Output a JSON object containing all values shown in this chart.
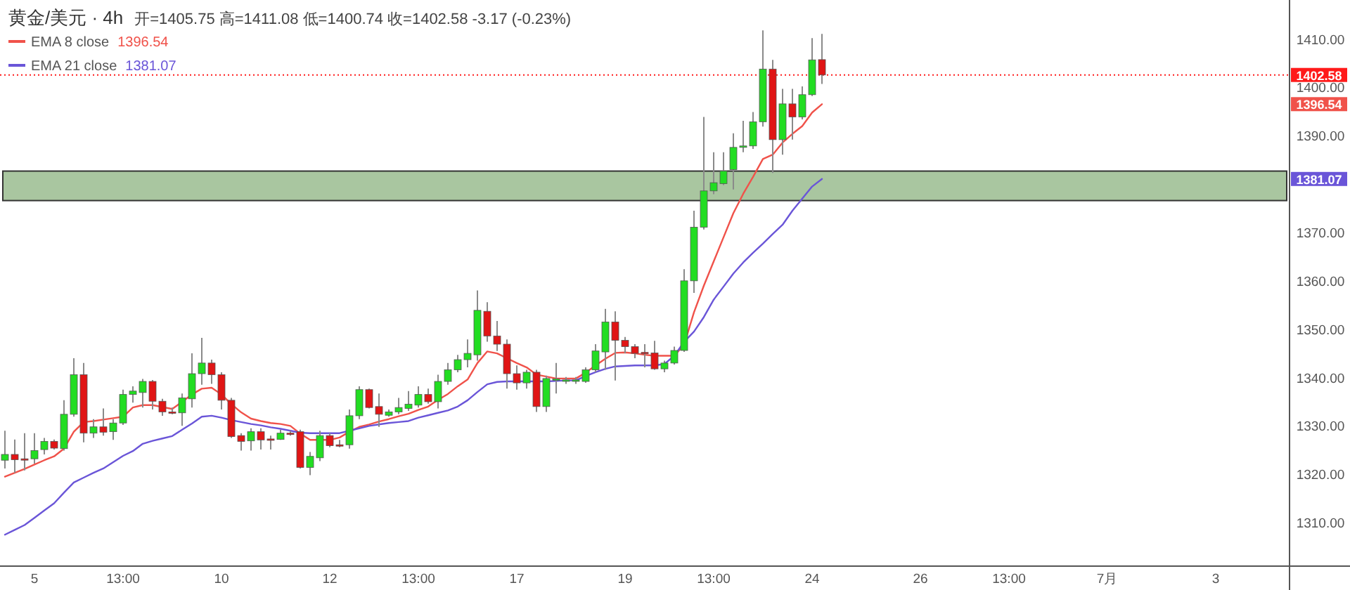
{
  "chart_data": {
    "type": "candlestick",
    "title": "黄金/美元 · 4h",
    "subtitle": "开=1405.75 高=1411.08 低=1400.74 收=1402.58 -3.17 (-0.23%)",
    "categories": [
      null,
      null,
      null,
      "5",
      null,
      null,
      null,
      null,
      null,
      null,
      null,
      null,
      "13:00",
      null,
      null,
      null,
      null,
      null,
      null,
      null,
      null,
      null,
      "10",
      null,
      null,
      null,
      null,
      null,
      null,
      null,
      null,
      null,
      null,
      "12",
      null,
      null,
      null,
      null,
      null,
      null,
      null,
      null,
      "13:00",
      null,
      null,
      null,
      null,
      null,
      null,
      null,
      null,
      null,
      "17",
      null,
      null,
      null,
      null,
      null,
      null,
      null,
      null,
      null,
      null,
      "19",
      null,
      null,
      null,
      null,
      null,
      null,
      null,
      null,
      "13:00",
      null,
      null,
      null,
      null,
      null,
      null,
      null,
      null,
      null,
      "24",
      null,
      null,
      null,
      null,
      null,
      null,
      null,
      null,
      null,
      null,
      "26",
      null,
      null,
      null,
      null,
      null,
      null,
      null,
      null,
      "13:00",
      null,
      null,
      null,
      null,
      null,
      null,
      null,
      null,
      null,
      "7月",
      null,
      null,
      null,
      null,
      null,
      null,
      null,
      null,
      null,
      null,
      "3",
      null,
      null,
      null,
      null,
      null,
      null,
      null
    ],
    "ohlc": [
      [
        1322.9,
        1329.0,
        1321.2,
        1324.1
      ],
      [
        1324.1,
        1327.2,
        1320.3,
        1323.0
      ],
      [
        1323.2,
        1328.5,
        1320.8,
        1323.1
      ],
      [
        1323.2,
        1328.5,
        1322.2,
        1324.9
      ],
      [
        1325.1,
        1327.5,
        1324.1,
        1326.8
      ],
      [
        1326.8,
        1327.2,
        1325.1,
        1325.4
      ],
      [
        1325.3,
        1335.3,
        1324.9,
        1332.4
      ],
      [
        1332.4,
        1344.0,
        1331.9,
        1340.6
      ],
      [
        1340.6,
        1343.0,
        1326.6,
        1328.5
      ],
      [
        1328.5,
        1331.4,
        1327.5,
        1329.8
      ],
      [
        1329.8,
        1333.6,
        1328.0,
        1328.7
      ],
      [
        1328.8,
        1331.4,
        1327.1,
        1330.6
      ],
      [
        1330.6,
        1337.5,
        1330.2,
        1336.5
      ],
      [
        1336.5,
        1338.2,
        1334.8,
        1337.2
      ],
      [
        1336.9,
        1339.7,
        1333.8,
        1339.2
      ],
      [
        1339.2,
        1339.5,
        1333.4,
        1335.1
      ],
      [
        1335.1,
        1335.6,
        1332.1,
        1332.9
      ],
      [
        1332.9,
        1333.8,
        1332.4,
        1332.8
      ],
      [
        1332.7,
        1336.7,
        1330.0,
        1335.8
      ],
      [
        1335.6,
        1345.0,
        1333.8,
        1340.8
      ],
      [
        1340.8,
        1348.2,
        1338.5,
        1343.0
      ],
      [
        1343.0,
        1343.7,
        1338.7,
        1340.6
      ],
      [
        1340.6,
        1341.1,
        1333.4,
        1335.3
      ],
      [
        1335.3,
        1335.8,
        1327.5,
        1327.8
      ],
      [
        1328.0,
        1328.5,
        1324.9,
        1326.8
      ],
      [
        1326.9,
        1329.5,
        1324.9,
        1328.8
      ],
      [
        1328.8,
        1329.5,
        1325.1,
        1327.1
      ],
      [
        1327.3,
        1328.0,
        1325.1,
        1327.2
      ],
      [
        1327.2,
        1329.2,
        1327.1,
        1328.5
      ],
      [
        1328.5,
        1329.0,
        1328.0,
        1328.4
      ],
      [
        1328.8,
        1329.2,
        1321.2,
        1321.4
      ],
      [
        1321.4,
        1324.6,
        1319.8,
        1323.7
      ],
      [
        1323.4,
        1329.0,
        1322.7,
        1328.0
      ],
      [
        1328.0,
        1328.5,
        1325.6,
        1325.9
      ],
      [
        1326.1,
        1327.1,
        1325.6,
        1326.0
      ],
      [
        1326.1,
        1333.4,
        1325.3,
        1332.1
      ],
      [
        1332.1,
        1338.2,
        1331.4,
        1337.5
      ],
      [
        1337.5,
        1337.7,
        1333.6,
        1333.8
      ],
      [
        1334.0,
        1336.7,
        1329.8,
        1332.4
      ],
      [
        1332.2,
        1333.4,
        1331.9,
        1332.9
      ],
      [
        1332.9,
        1335.8,
        1332.4,
        1333.8
      ],
      [
        1333.6,
        1337.2,
        1333.1,
        1334.5
      ],
      [
        1334.3,
        1338.2,
        1333.8,
        1336.5
      ],
      [
        1336.5,
        1337.7,
        1334.6,
        1335.0
      ],
      [
        1335.0,
        1340.6,
        1333.6,
        1339.2
      ],
      [
        1339.2,
        1343.0,
        1338.5,
        1341.6
      ],
      [
        1341.6,
        1344.7,
        1341.1,
        1343.7
      ],
      [
        1343.7,
        1347.9,
        1342.1,
        1345.0
      ],
      [
        1344.7,
        1358.0,
        1343.5,
        1353.9
      ],
      [
        1353.7,
        1355.6,
        1347.4,
        1348.6
      ],
      [
        1348.6,
        1351.7,
        1345.5,
        1346.9
      ],
      [
        1346.9,
        1347.9,
        1337.7,
        1340.8
      ],
      [
        1340.8,
        1342.5,
        1337.5,
        1338.9
      ],
      [
        1338.9,
        1341.6,
        1337.7,
        1341.1
      ],
      [
        1341.1,
        1341.6,
        1332.9,
        1334.0
      ],
      [
        1334.0,
        1340.4,
        1332.9,
        1339.8
      ],
      [
        1339.6,
        1343.0,
        1336.7,
        1339.7
      ],
      [
        1339.4,
        1340.1,
        1338.7,
        1339.5
      ],
      [
        1339.4,
        1340.1,
        1338.7,
        1339.5
      ],
      [
        1339.2,
        1342.1,
        1338.9,
        1341.6
      ],
      [
        1341.6,
        1346.9,
        1341.1,
        1345.5
      ],
      [
        1345.3,
        1354.2,
        1341.6,
        1351.5
      ],
      [
        1351.5,
        1353.7,
        1339.4,
        1347.7
      ],
      [
        1347.7,
        1348.4,
        1345.0,
        1346.4
      ],
      [
        1346.4,
        1346.9,
        1344.0,
        1345.0
      ],
      [
        1345.2,
        1346.9,
        1342.1,
        1345.1
      ],
      [
        1345.1,
        1347.6,
        1341.6,
        1341.8
      ],
      [
        1341.8,
        1343.5,
        1341.1,
        1343.0
      ],
      [
        1343.0,
        1346.4,
        1342.7,
        1345.6
      ],
      [
        1345.6,
        1362.4,
        1345.3,
        1360.0
      ],
      [
        1360.0,
        1374.5,
        1357.5,
        1371.1
      ],
      [
        1371.1,
        1393.9,
        1370.6,
        1378.6
      ],
      [
        1378.6,
        1386.6,
        1377.9,
        1380.3
      ],
      [
        1380.1,
        1386.6,
        1379.8,
        1382.7
      ],
      [
        1383.0,
        1390.5,
        1378.9,
        1387.6
      ],
      [
        1387.6,
        1393.1,
        1386.6,
        1387.9
      ],
      [
        1387.9,
        1394.9,
        1387.3,
        1392.9
      ],
      [
        1392.9,
        1411.8,
        1391.9,
        1403.8
      ],
      [
        1403.8,
        1405.7,
        1382.3,
        1389.2
      ],
      [
        1389.2,
        1399.7,
        1386.1,
        1396.6
      ],
      [
        1396.6,
        1399.7,
        1389.2,
        1393.9
      ],
      [
        1393.9,
        1400.2,
        1393.4,
        1398.5
      ],
      [
        1398.5,
        1410.2,
        1398.2,
        1405.7
      ],
      [
        1405.75,
        1411.08,
        1400.74,
        1402.58
      ],
      null,
      null,
      null,
      null,
      null,
      null,
      null,
      null,
      null,
      null,
      null,
      null,
      null,
      null,
      null,
      null,
      null,
      null,
      null,
      null,
      null,
      null,
      null,
      null,
      null,
      null,
      null,
      null,
      null,
      null,
      null,
      null,
      null,
      null,
      null,
      null,
      null,
      null,
      null,
      null,
      null,
      null,
      null,
      null,
      null,
      null,
      null
    ],
    "colors": [
      "#22dd22",
      "#e01515",
      "#e01515",
      "#22dd22",
      "#22dd22",
      "#e01515",
      "#22dd22",
      "#22dd22",
      "#e01515",
      "#22dd22",
      "#e01515",
      "#22dd22",
      "#22dd22",
      "#22dd22",
      "#22dd22",
      "#e01515",
      "#e01515",
      "#e01515",
      "#22dd22",
      "#22dd22",
      "#22dd22",
      "#e01515",
      "#e01515",
      "#e01515",
      "#e01515",
      "#22dd22",
      "#e01515",
      "#e01515",
      "#22dd22",
      "#e01515",
      "#e01515",
      "#22dd22",
      "#22dd22",
      "#e01515",
      "#e01515",
      "#22dd22",
      "#22dd22",
      "#e01515",
      "#e01515",
      "#22dd22",
      "#22dd22",
      "#22dd22",
      "#22dd22",
      "#e01515",
      "#22dd22",
      "#22dd22",
      "#22dd22",
      "#22dd22",
      "#22dd22",
      "#e01515",
      "#e01515",
      "#e01515",
      "#e01515",
      "#22dd22",
      "#e01515",
      "#22dd22",
      "#22dd22",
      "#22dd22",
      "#22dd22",
      "#22dd22",
      "#22dd22",
      "#22dd22",
      "#e01515",
      "#e01515",
      "#e01515",
      "#e01515",
      "#e01515",
      "#22dd22",
      "#22dd22",
      "#22dd22",
      "#22dd22",
      "#22dd22",
      "#22dd22",
      "#22dd22",
      "#22dd22",
      "#22dd22",
      "#22dd22",
      "#22dd22",
      "#e01515",
      "#22dd22",
      "#e01515",
      "#22dd22",
      "#22dd22",
      "#e01515",
      null,
      null,
      null,
      null,
      null,
      null,
      null,
      null,
      null,
      null,
      null,
      null,
      null,
      null,
      null,
      null,
      null,
      null,
      null,
      null,
      null,
      null,
      null,
      null,
      null,
      null,
      null,
      null,
      null,
      null,
      null,
      null,
      null,
      null,
      null,
      null,
      null,
      null,
      null,
      null,
      null,
      null,
      null,
      null,
      null,
      null,
      null
    ],
    "series": [
      {
        "name": "EMA 8 close",
        "type": "line",
        "color": "#f0524a",
        "values": [
          1319.5,
          1320.3,
          1321.1,
          1322.0,
          1322.9,
          1323.7,
          1325.3,
          1328.8,
          1330.8,
          1331.0,
          1331.3,
          1331.6,
          1331.9,
          1333.8,
          1334.3,
          1334.3,
          1333.9,
          1333.5,
          1335.0,
          1336.5,
          1337.7,
          1337.9,
          1336.5,
          1334.5,
          1332.8,
          1331.5,
          1331.0,
          1330.6,
          1330.4,
          1330.0,
          1328.4,
          1327.1,
          1327.1,
          1327.1,
          1327.6,
          1328.8,
          1329.8,
          1330.3,
          1330.9,
          1331.4,
          1332.0,
          1332.5,
          1333.3,
          1334.0,
          1335.4,
          1336.6,
          1338.2,
          1339.6,
          1343.0,
          1345.4,
          1345.0,
          1344.0,
          1343.0,
          1342.1,
          1340.6,
          1340.2,
          1339.8,
          1339.8,
          1339.8,
          1341.0,
          1342.5,
          1343.9,
          1345.1,
          1345.2,
          1345.0,
          1344.7,
          1344.5,
          1344.5,
          1344.5,
          1346.8,
          1353.5,
          1359.0,
          1364.0,
          1369.0,
          1374.0,
          1378.0,
          1381.5,
          1385.2,
          1386.1,
          1388.6,
          1390.4,
          1392.0,
          1394.8,
          1396.54,
          null,
          null,
          null,
          null,
          null,
          null,
          null,
          null,
          null,
          null,
          null,
          null,
          null,
          null,
          null,
          null,
          null,
          null,
          null,
          null,
          null,
          null,
          null,
          null,
          null,
          null,
          null,
          null,
          null,
          null,
          null,
          null,
          null,
          null,
          null,
          null,
          null,
          null,
          null,
          null,
          null,
          null,
          null,
          null,
          null,
          null,
          null
        ]
      },
      {
        "name": "EMA 21 close",
        "type": "line",
        "color": "#6a55d8",
        "values": [
          1307.5,
          1308.5,
          1309.5,
          1311.0,
          1312.5,
          1314.0,
          1316.2,
          1318.3,
          1319.3,
          1320.3,
          1321.2,
          1322.5,
          1323.8,
          1324.8,
          1326.3,
          1326.9,
          1327.4,
          1327.9,
          1329.2,
          1330.5,
          1331.9,
          1332.1,
          1331.7,
          1331.2,
          1330.8,
          1330.4,
          1330.1,
          1329.7,
          1329.4,
          1329.0,
          1328.6,
          1328.5,
          1328.5,
          1328.5,
          1328.5,
          1329.0,
          1329.5,
          1330.0,
          1330.3,
          1330.6,
          1330.8,
          1331.0,
          1331.7,
          1332.2,
          1332.7,
          1333.2,
          1334.0,
          1335.3,
          1337.0,
          1338.6,
          1339.1,
          1339.2,
          1339.2,
          1339.2,
          1339.2,
          1339.2,
          1339.3,
          1339.4,
          1339.4,
          1340.3,
          1341.1,
          1341.8,
          1342.3,
          1342.4,
          1342.5,
          1342.5,
          1342.5,
          1342.8,
          1344.5,
          1347.4,
          1349.5,
          1352.5,
          1356.1,
          1358.8,
          1361.5,
          1363.8,
          1365.8,
          1367.7,
          1369.7,
          1371.6,
          1374.5,
          1377.0,
          1379.5,
          1381.07,
          null,
          null,
          null,
          null,
          null,
          null,
          null,
          null,
          null,
          null,
          null,
          null,
          null,
          null,
          null,
          null,
          null,
          null,
          null,
          null,
          null,
          null,
          null,
          null,
          null,
          null,
          null,
          null,
          null,
          null,
          null,
          null,
          null,
          null,
          null,
          null,
          null,
          null,
          null,
          null,
          null,
          null,
          null,
          null,
          null,
          null,
          null
        ]
      }
    ],
    "ylim": [
      1301,
      1417.5
    ],
    "yticks": [
      {
        "value": 1310,
        "label": "1310.00"
      },
      {
        "value": 1320,
        "label": "1320.00"
      },
      {
        "value": 1330,
        "label": "1330.00"
      },
      {
        "value": 1340,
        "label": "1340.00"
      },
      {
        "value": 1350,
        "label": "1350.00"
      },
      {
        "value": 1360,
        "label": "1360.00"
      },
      {
        "value": 1370,
        "label": "1370.00"
      },
      {
        "value": 1390,
        "label": "1390.00"
      },
      {
        "value": 1400,
        "label": "1400.00"
      },
      {
        "value": 1410,
        "label": "1410.00"
      }
    ],
    "ref_lines": [
      {
        "axis": "y",
        "value": 1402.58,
        "label": "1402.58",
        "color": "#ff1a1a",
        "line_style": "dotted"
      }
    ],
    "bands": [
      {
        "axis": "y",
        "from": 1376.6,
        "to": 1382.7,
        "color": "#a9c6a0"
      }
    ],
    "annotations": [
      "1396.54",
      "1381.07"
    ],
    "legend": "top left"
  }
}
